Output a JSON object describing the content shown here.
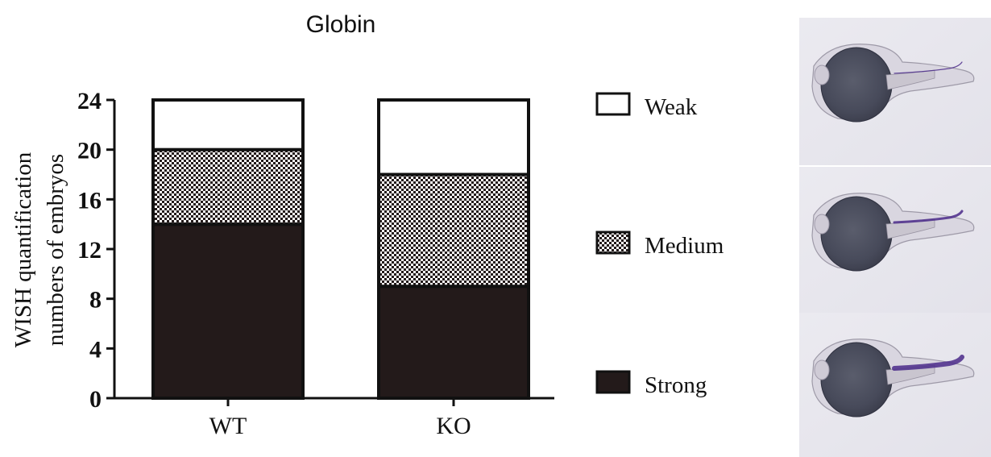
{
  "chart_data": {
    "type": "bar",
    "stacked": true,
    "title": "Globin",
    "ylabel": [
      "WISH quantification",
      "numbers of embryos"
    ],
    "xlabel": "",
    "categories": [
      "WT",
      "KO"
    ],
    "ylim": [
      0,
      24
    ],
    "yticks": [
      "0",
      "4",
      "8",
      "12",
      "16",
      "20",
      "24"
    ],
    "series": [
      {
        "name": "Strong",
        "values": [
          14,
          9
        ],
        "pattern": "solid"
      },
      {
        "name": "Medium",
        "values": [
          6,
          9
        ],
        "pattern": "checker"
      },
      {
        "name": "Weak",
        "values": [
          4,
          6
        ],
        "pattern": "white"
      }
    ],
    "legend_placement": "right",
    "legend_order": [
      "Weak",
      "Medium",
      "Strong"
    ],
    "grid": false
  },
  "images": [
    {
      "stain": "weak"
    },
    {
      "stain": "medium"
    },
    {
      "stain": "strong"
    }
  ],
  "colors": {
    "bar_dark": "#231a1a",
    "axis": "#111111",
    "panel_bg": "#e8e7ee",
    "stain": "#4a2a8a",
    "yolk": "#4b4e5e"
  }
}
